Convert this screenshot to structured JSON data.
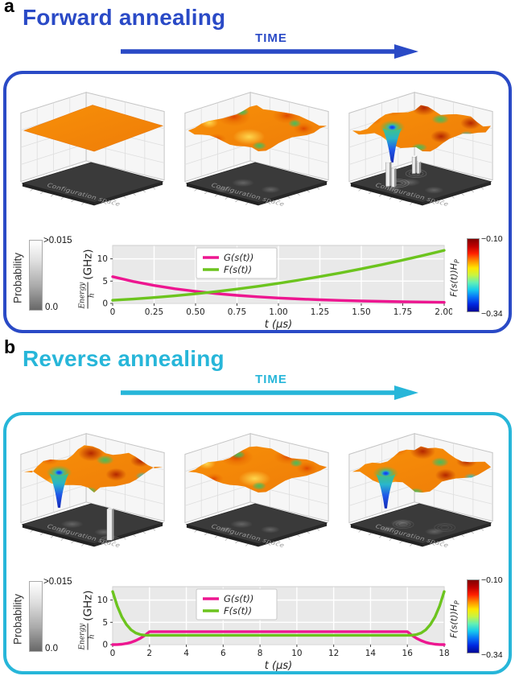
{
  "figure": {
    "floor_label": "Configuration space"
  },
  "panels": [
    {
      "letter": "a",
      "title": "Forward annealing",
      "time_label": "TIME",
      "accent": "#2a4ac6",
      "probability_colorbar": {
        "label": "Probability",
        "top_tick": ">0.015",
        "bottom_tick": "0.0"
      },
      "energy_colorbar": {
        "label_main": "F(s(t))H",
        "label_sub": "P",
        "top_tick": "−0.10",
        "bottom_tick": "−0.34"
      },
      "surfaces": [
        {
          "kind": "flat",
          "funnel": false,
          "spikes": "none",
          "seed": 3,
          "funnel_pos": [
            66,
            60
          ],
          "description": "flat orange energy plane over uniform dark probability floor"
        },
        {
          "kind": "wavy",
          "funnel": false,
          "spikes": "none",
          "seed": 7,
          "funnel_pos": [
            66,
            60
          ],
          "description": "shallow bumps and green dips emerging, faint probability blobs"
        },
        {
          "kind": "rugged",
          "funnel": true,
          "spikes": "cluster",
          "seed": 11,
          "funnel_pos": [
            64,
            58
          ],
          "description": "rugged landscape with deep blue minimum and probability spikes"
        }
      ]
    },
    {
      "letter": "b",
      "title": "Reverse annealing",
      "time_label": "TIME",
      "accent": "#27b6d9",
      "probability_colorbar": {
        "label": "Probability",
        "top_tick": ">0.015",
        "bottom_tick": "0.0"
      },
      "energy_colorbar": {
        "label_main": "F(s(t))H",
        "label_sub": "P",
        "top_tick": "−0.10",
        "bottom_tick": "−0.34"
      },
      "surfaces": [
        {
          "kind": "rugged",
          "funnel": true,
          "spikes": "single",
          "seed": 17,
          "funnel_pos": [
            58,
            63
          ],
          "description": "rugged landscape with single classical-state probability spike"
        },
        {
          "kind": "wavy",
          "funnel": false,
          "spikes": "none",
          "seed": 23,
          "funnel_pos": [
            66,
            60
          ],
          "description": "partially un-annealed smoother landscape, spread probability"
        },
        {
          "kind": "rugged",
          "funnel": true,
          "spikes": "none",
          "seed": 29,
          "funnel_pos": [
            56,
            64
          ],
          "description": "re-annealed rugged landscape with redistributed probability"
        }
      ]
    }
  ],
  "chart_data": [
    {
      "type": "line",
      "title": "",
      "xlabel": "t (μs)",
      "ylabel": "Energy/h (GHz)",
      "ylabel_num": "Energy",
      "ylabel_den": "h",
      "ylabel_unit": "(GHz)",
      "xlim": [
        0,
        2.0
      ],
      "ylim": [
        0,
        13
      ],
      "xticks": [
        0,
        0.25,
        0.5,
        0.75,
        1.0,
        1.25,
        1.5,
        1.75,
        2.0
      ],
      "xtick_labels": [
        "0",
        "0.25",
        "0.50",
        "0.75",
        "1.00",
        "1.25",
        "1.50",
        "1.75",
        "2.00"
      ],
      "yticks": [
        0,
        5,
        10
      ],
      "ytick_labels": [
        "0",
        "5",
        "10"
      ],
      "grid": true,
      "legend_position": "upper-left",
      "series": [
        {
          "name": "G(s(t))",
          "color": "#ed1690",
          "x": [
            0,
            0.125,
            0.25,
            0.375,
            0.5,
            0.625,
            0.75,
            0.875,
            1.0,
            1.125,
            1.25,
            1.375,
            1.5,
            1.625,
            1.75,
            1.875,
            2.0
          ],
          "y": [
            6.0,
            4.91,
            4.02,
            3.29,
            2.7,
            2.21,
            1.81,
            1.48,
            1.21,
            0.99,
            0.81,
            0.67,
            0.55,
            0.45,
            0.37,
            0.3,
            0.24
          ]
        },
        {
          "name": "F(s(t))",
          "color": "#6cc41e",
          "x": [
            0,
            0.125,
            0.25,
            0.375,
            0.5,
            0.625,
            0.75,
            0.875,
            1.0,
            1.125,
            1.25,
            1.375,
            1.5,
            1.625,
            1.75,
            1.875,
            2.0
          ],
          "y": [
            0.7,
            0.98,
            1.31,
            1.7,
            2.15,
            2.65,
            3.21,
            3.83,
            4.5,
            5.23,
            6.01,
            6.85,
            7.75,
            8.7,
            9.71,
            10.78,
            11.9
          ]
        }
      ]
    },
    {
      "type": "line",
      "title": "",
      "xlabel": "t (μs)",
      "ylabel": "Energy/h (GHz)",
      "ylabel_num": "Energy",
      "ylabel_den": "h",
      "ylabel_unit": "(GHz)",
      "xlim": [
        0,
        18
      ],
      "ylim": [
        0,
        13
      ],
      "xticks": [
        0,
        2,
        4,
        6,
        8,
        10,
        12,
        14,
        16,
        18
      ],
      "xtick_labels": [
        "0",
        "2",
        "4",
        "6",
        "8",
        "10",
        "12",
        "14",
        "16",
        "18"
      ],
      "yticks": [
        0,
        5,
        10
      ],
      "ytick_labels": [
        "0",
        "5",
        "10"
      ],
      "grid": true,
      "legend_position": "upper-left",
      "series": [
        {
          "name": "G(s(t))",
          "color": "#ed1690",
          "x": [
            0,
            0.25,
            0.5,
            0.75,
            1,
            1.25,
            1.5,
            1.75,
            2,
            4,
            6,
            8,
            10,
            12,
            14,
            16,
            16.25,
            16.5,
            16.75,
            17,
            17.25,
            17.5,
            17.75,
            18
          ],
          "y": [
            0,
            0.02,
            0.09,
            0.25,
            0.51,
            0.9,
            1.41,
            2.08,
            2.9,
            2.9,
            2.9,
            2.9,
            2.9,
            2.9,
            2.9,
            2.9,
            2.08,
            1.41,
            0.9,
            0.51,
            0.25,
            0.09,
            0.02,
            0
          ]
        },
        {
          "name": "F(s(t))",
          "color": "#6cc41e",
          "x": [
            0,
            0.25,
            0.5,
            0.75,
            1,
            1.25,
            1.5,
            1.75,
            2,
            4,
            6,
            8,
            10,
            12,
            14,
            16,
            16.25,
            16.5,
            16.75,
            17,
            17.25,
            17.5,
            17.75,
            18
          ],
          "y": [
            11.9,
            8.66,
            6.23,
            4.49,
            3.33,
            2.62,
            2.25,
            2.12,
            2.1,
            2.1,
            2.1,
            2.1,
            2.1,
            2.1,
            2.1,
            2.1,
            2.12,
            2.25,
            2.62,
            3.33,
            4.49,
            6.23,
            8.66,
            11.9
          ]
        }
      ]
    }
  ]
}
